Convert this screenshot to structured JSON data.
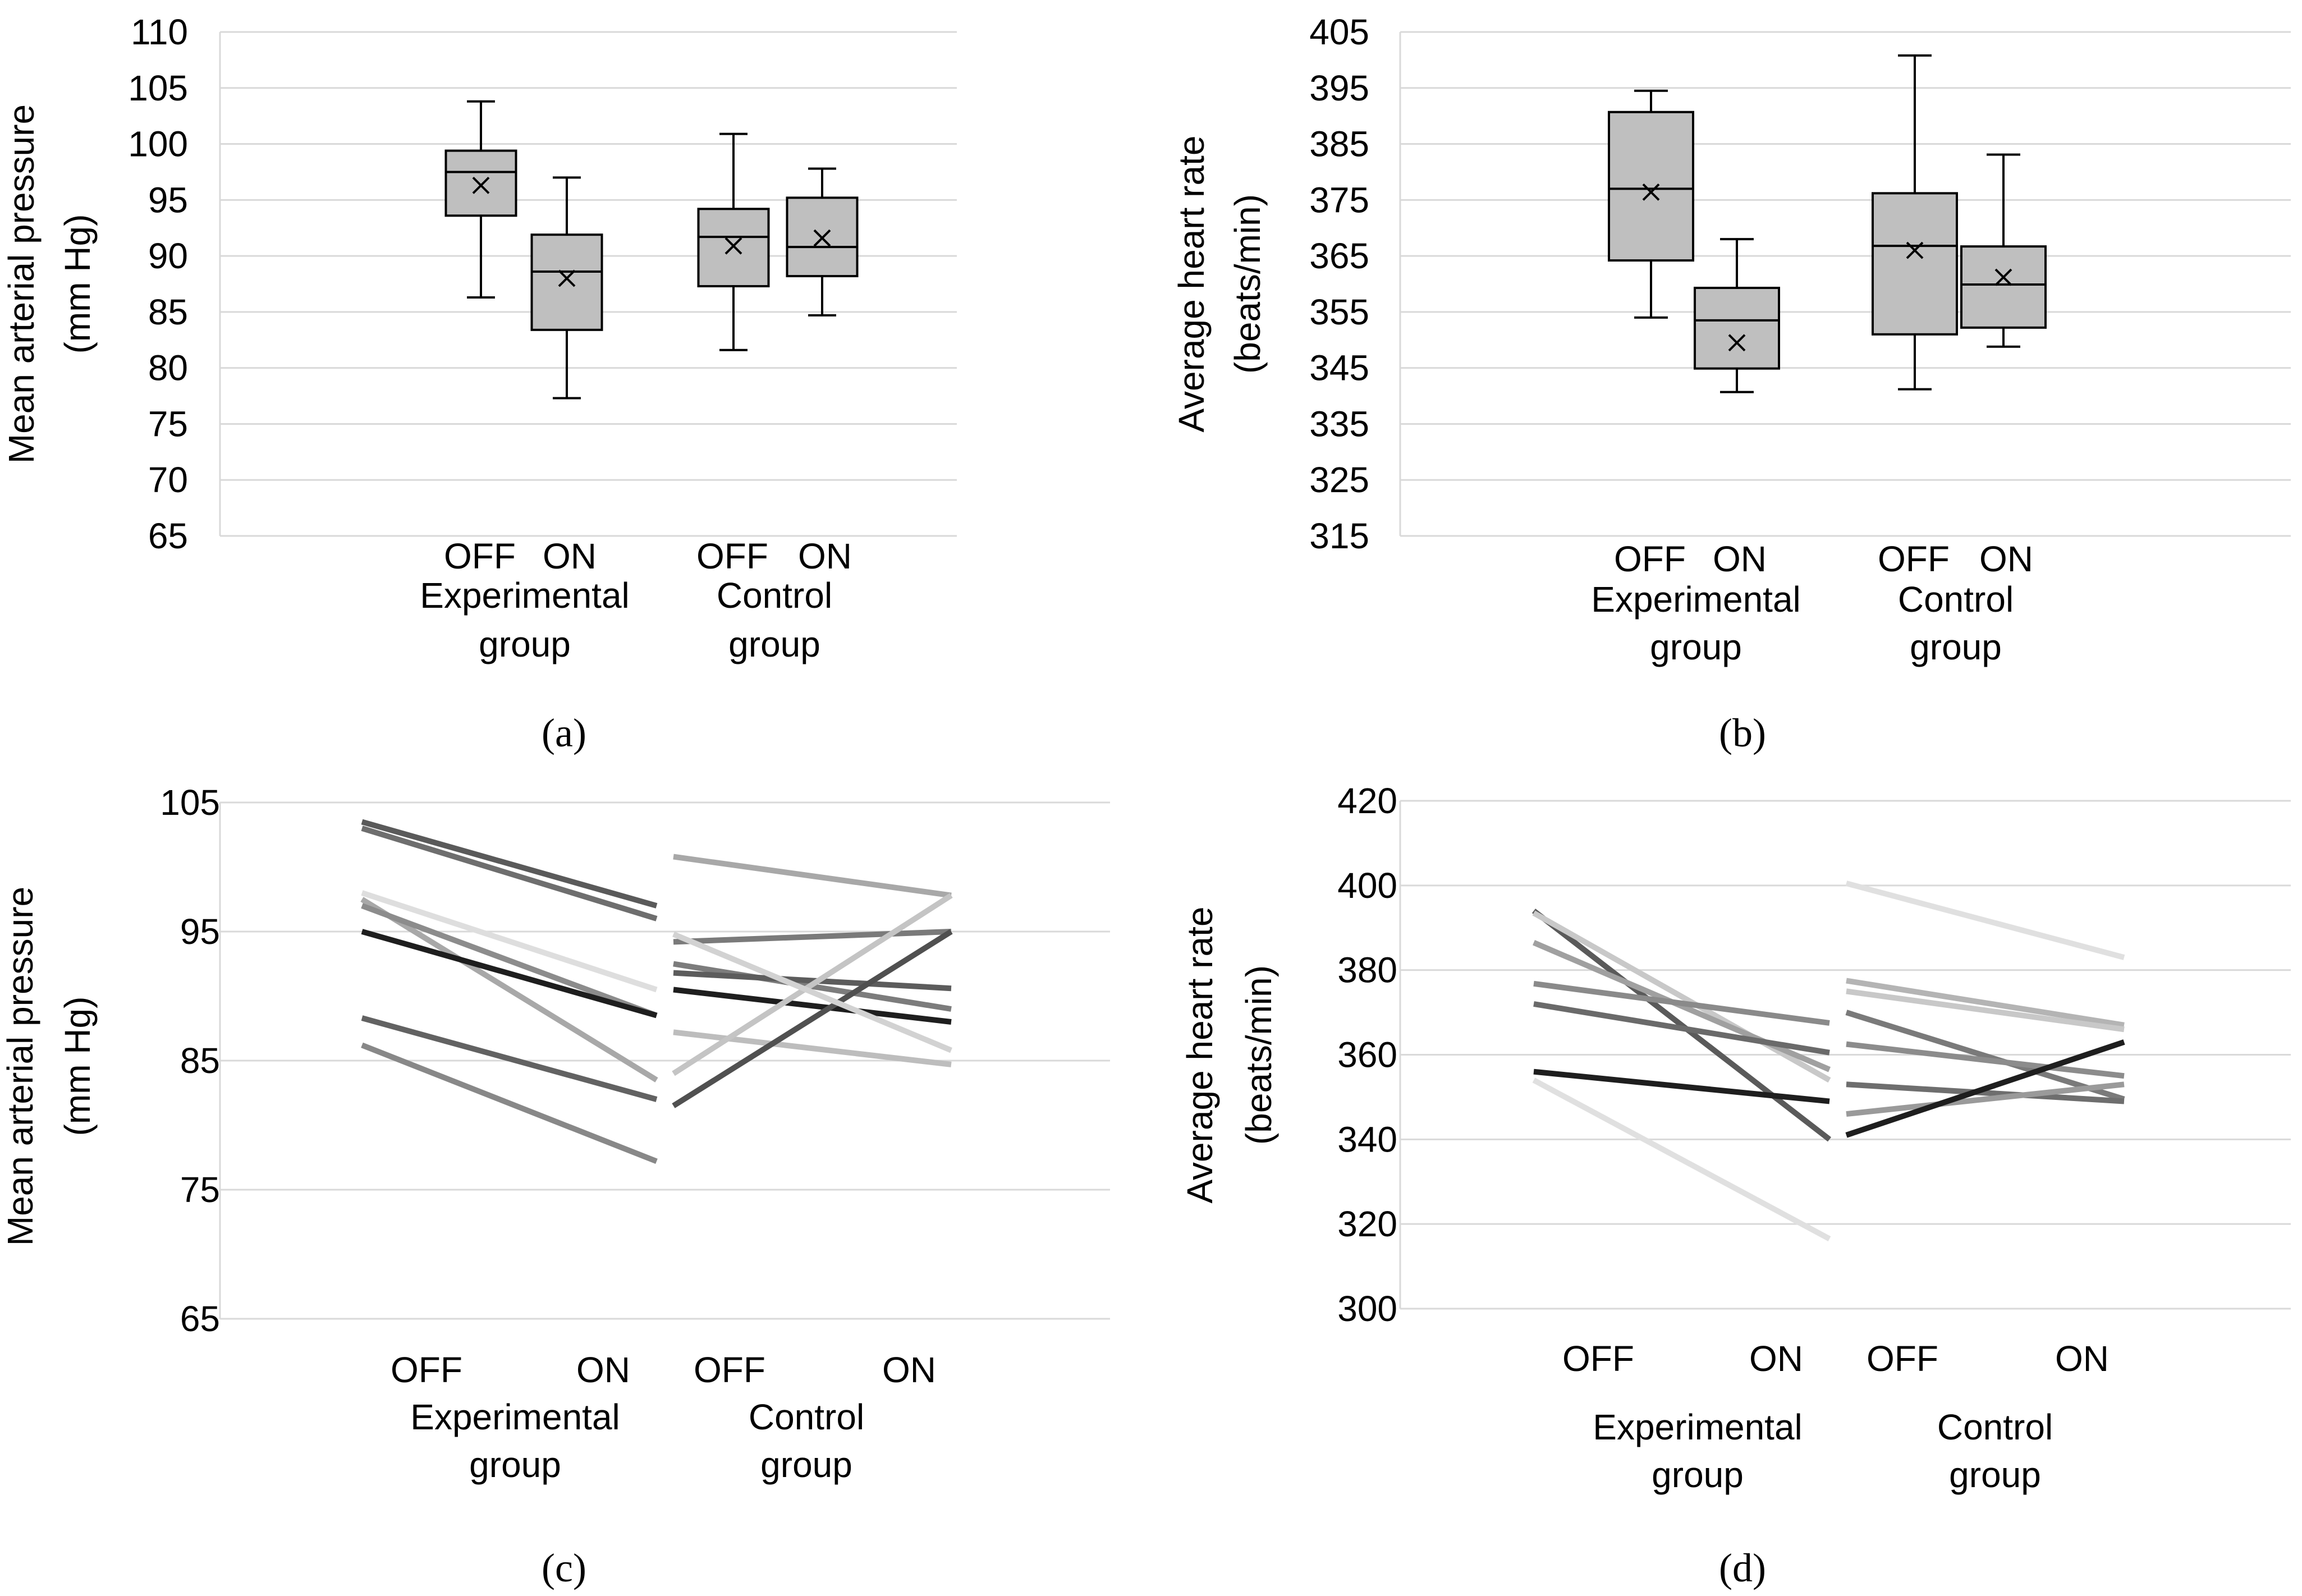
{
  "chart_data": [
    {
      "panel": "a",
      "type": "box",
      "ylabel_lines": [
        "Mean arterial pressure",
        "(mm Hg)"
      ],
      "ylim": [
        65,
        110
      ],
      "ytick_step": 5,
      "yticks": [
        "65",
        "70",
        "75",
        "80",
        "85",
        "90",
        "95",
        "100",
        "105",
        "110"
      ],
      "conditions": [
        "OFF",
        "ON",
        "OFF",
        "ON"
      ],
      "groups": [
        [
          "Experimental",
          "group"
        ],
        [
          "Control",
          "group"
        ]
      ],
      "boxes": [
        {
          "group": "Experimental",
          "condition": "OFF",
          "min": 86.3,
          "q1": 93.6,
          "median": 97.5,
          "q3": 99.4,
          "max": 103.8,
          "mean": 96.3
        },
        {
          "group": "Experimental",
          "condition": "ON",
          "min": 77.3,
          "q1": 83.4,
          "median": 88.6,
          "q3": 91.9,
          "max": 97.0,
          "mean": 88.0
        },
        {
          "group": "Control",
          "condition": "OFF",
          "min": 81.6,
          "q1": 87.3,
          "median": 91.7,
          "q3": 94.2,
          "max": 100.9,
          "mean": 90.9
        },
        {
          "group": "Control",
          "condition": "ON",
          "min": 84.7,
          "q1": 88.2,
          "median": 90.8,
          "q3": 95.2,
          "max": 97.8,
          "mean": 91.6
        }
      ]
    },
    {
      "panel": "b",
      "type": "box",
      "ylabel_lines": [
        "Average heart rate",
        "(beats/min)"
      ],
      "ylim": [
        315,
        405
      ],
      "ytick_step": 10,
      "yticks": [
        "315",
        "325",
        "335",
        "345",
        "355",
        "365",
        "375",
        "385",
        "395",
        "405"
      ],
      "conditions": [
        "OFF",
        "ON",
        "OFF",
        "ON"
      ],
      "groups": [
        [
          "Experimental",
          "group"
        ],
        [
          "Control",
          "group"
        ]
      ],
      "boxes": [
        {
          "group": "Experimental",
          "condition": "OFF",
          "min": 354.0,
          "q1": 364.2,
          "median": 377.0,
          "q3": 390.7,
          "max": 394.5,
          "mean": 376.4
        },
        {
          "group": "Experimental",
          "condition": "ON",
          "min": 340.7,
          "q1": 344.9,
          "median": 353.5,
          "q3": 359.3,
          "max": 368.0,
          "mean": 349.5
        },
        {
          "group": "Control",
          "condition": "OFF",
          "min": 341.2,
          "q1": 351.0,
          "median": 366.8,
          "q3": 376.2,
          "max": 400.8,
          "mean": 366.0
        },
        {
          "group": "Control",
          "condition": "ON",
          "min": 348.8,
          "q1": 352.2,
          "median": 359.9,
          "q3": 366.7,
          "max": 383.1,
          "mean": 361.2
        }
      ]
    },
    {
      "panel": "c",
      "type": "line",
      "ylabel_lines": [
        "Mean arterial pressure",
        "(mm Hg)"
      ],
      "ylim": [
        65,
        105
      ],
      "ytick_step": 10,
      "yticks": [
        "65",
        "75",
        "85",
        "95",
        "105"
      ],
      "conditions": [
        "OFF",
        "ON",
        "OFF",
        "ON"
      ],
      "groups": [
        [
          "Experimental",
          "group"
        ],
        [
          "Control",
          "group"
        ]
      ],
      "series": [
        {
          "group": "Experimental",
          "off": 103.5,
          "on": 97.0,
          "color": "#5a5a5a"
        },
        {
          "group": "Experimental",
          "off": 103.0,
          "on": 96.0,
          "color": "#6e6e6e"
        },
        {
          "group": "Experimental",
          "off": 98.0,
          "on": 90.5,
          "color": "#dedede"
        },
        {
          "group": "Experimental",
          "off": 97.5,
          "on": 83.5,
          "color": "#a8a8a8"
        },
        {
          "group": "Experimental",
          "off": 97.0,
          "on": 88.5,
          "color": "#8c8c8c"
        },
        {
          "group": "Experimental",
          "off": 95.0,
          "on": 88.5,
          "color": "#1e1e1e"
        },
        {
          "group": "Experimental",
          "off": 88.3,
          "on": 82.0,
          "color": "#626262"
        },
        {
          "group": "Experimental",
          "off": 86.2,
          "on": 77.2,
          "color": "#888888"
        },
        {
          "group": "Control",
          "off": 100.8,
          "on": 97.8,
          "color": "#a8a8a8"
        },
        {
          "group": "Control",
          "off": 94.2,
          "on": 95.0,
          "color": "#7a7a7a"
        },
        {
          "group": "Control",
          "off": 92.5,
          "on": 89.0,
          "color": "#7c7c7c"
        },
        {
          "group": "Control",
          "off": 91.8,
          "on": 90.6,
          "color": "#5c5c5c"
        },
        {
          "group": "Control",
          "off": 90.5,
          "on": 88.0,
          "color": "#1e1e1e"
        },
        {
          "group": "Control",
          "off": 87.2,
          "on": 84.7,
          "color": "#bdbdbd"
        },
        {
          "group": "Control",
          "off": 84.0,
          "on": 97.8,
          "color": "#c4c4c4"
        },
        {
          "group": "Control",
          "off": 81.5,
          "on": 95.0,
          "color": "#505050"
        },
        {
          "group": "Control",
          "off": 94.8,
          "on": 85.8,
          "color": "#d2d2d2"
        }
      ]
    },
    {
      "panel": "d",
      "type": "line",
      "ylabel_lines": [
        "Average heart rate",
        "(beats/min)"
      ],
      "ylim": [
        300,
        420
      ],
      "ytick_step": 20,
      "yticks": [
        "300",
        "320",
        "340",
        "360",
        "380",
        "400",
        "420"
      ],
      "conditions": [
        "OFF",
        "ON",
        "OFF",
        "ON"
      ],
      "groups": [
        [
          "Experimental",
          "group"
        ],
        [
          "Control",
          "group"
        ]
      ],
      "series": [
        {
          "group": "Experimental",
          "off": 394.0,
          "on": 340.0,
          "color": "#5a5a5a"
        },
        {
          "group": "Experimental",
          "off": 393.5,
          "on": 354.0,
          "color": "#c8c8c8"
        },
        {
          "group": "Experimental",
          "off": 386.5,
          "on": 356.5,
          "color": "#a0a0a0"
        },
        {
          "group": "Experimental",
          "off": 376.8,
          "on": 367.5,
          "color": "#8a8a8a"
        },
        {
          "group": "Experimental",
          "off": 372.0,
          "on": 360.5,
          "color": "#6a6a6a"
        },
        {
          "group": "Experimental",
          "off": 356.0,
          "on": 349.0,
          "color": "#1e1e1e"
        },
        {
          "group": "Experimental",
          "off": 354.0,
          "on": 316.5,
          "color": "#e0e0e0"
        },
        {
          "group": "Control",
          "off": 400.5,
          "on": 383.0,
          "color": "#e0e0e0"
        },
        {
          "group": "Control",
          "off": 377.5,
          "on": 367.0,
          "color": "#b4b4b4"
        },
        {
          "group": "Control",
          "off": 375.0,
          "on": 366.0,
          "color": "#c8c8c8"
        },
        {
          "group": "Control",
          "off": 370.0,
          "on": 349.5,
          "color": "#7a7a7a"
        },
        {
          "group": "Control",
          "off": 362.5,
          "on": 355.0,
          "color": "#8c8c8c"
        },
        {
          "group": "Control",
          "off": 353.0,
          "on": 349.0,
          "color": "#6e6e6e"
        },
        {
          "group": "Control",
          "off": 346.0,
          "on": 353.0,
          "color": "#9a9a9a"
        },
        {
          "group": "Control",
          "off": 341.0,
          "on": 363.0,
          "color": "#1e1e1e"
        }
      ]
    }
  ],
  "panel_labels": [
    "(a)",
    "(b)",
    "(c)",
    "(d)"
  ]
}
